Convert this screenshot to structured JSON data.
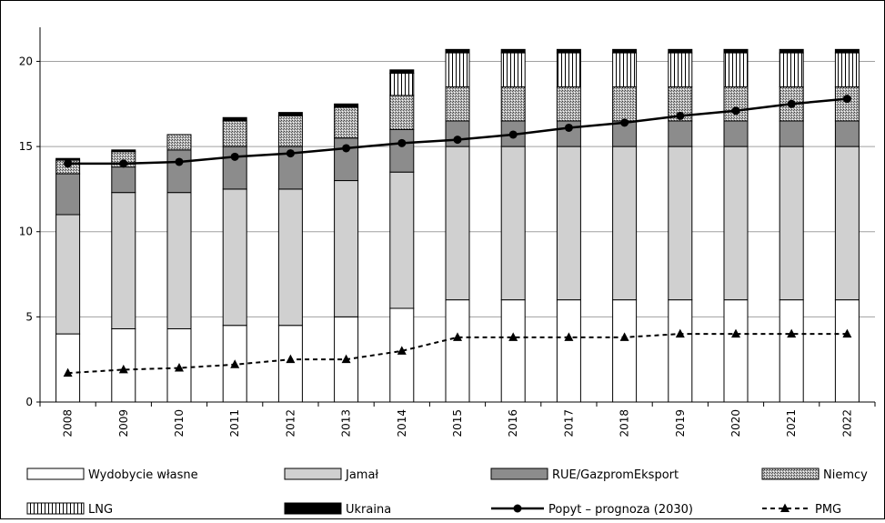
{
  "chart_data": {
    "type": "bar",
    "stacked": true,
    "title": "",
    "xlabel": "",
    "ylabel": "",
    "ylim": [
      0,
      22
    ],
    "yticks": [
      0,
      5,
      10,
      15,
      20
    ],
    "grid": true,
    "legend_position": "bottom",
    "categories": [
      "2008",
      "2009",
      "2010",
      "2011",
      "2012",
      "2013",
      "2014",
      "2015",
      "2016",
      "2017",
      "2018",
      "2019",
      "2020",
      "2021",
      "2022"
    ],
    "series": [
      {
        "name": "Wydobycie własne",
        "kind": "bar",
        "pattern": "white",
        "values": [
          4.0,
          4.3,
          4.3,
          4.5,
          4.5,
          5.0,
          5.5,
          6.0,
          6.0,
          6.0,
          6.0,
          6.0,
          6.0,
          6.0,
          6.0
        ]
      },
      {
        "name": "Jamał",
        "kind": "bar",
        "pattern": "lightgray",
        "values": [
          7.0,
          8.0,
          8.0,
          8.0,
          8.0,
          8.0,
          8.0,
          9.0,
          9.0,
          9.0,
          9.0,
          9.0,
          9.0,
          9.0,
          9.0
        ]
      },
      {
        "name": "RUE/GazpromEksport",
        "kind": "bar",
        "pattern": "darkgray",
        "values": [
          2.4,
          1.5,
          2.5,
          2.5,
          2.5,
          2.5,
          2.5,
          1.5,
          1.5,
          1.5,
          1.5,
          1.5,
          1.5,
          1.5,
          1.5
        ]
      },
      {
        "name": "Niemcy",
        "kind": "bar",
        "pattern": "crosshatch",
        "values": [
          0.8,
          0.9,
          0.9,
          1.5,
          1.8,
          1.8,
          2.0,
          2.0,
          2.0,
          2.0,
          2.0,
          2.0,
          2.0,
          2.0,
          2.0
        ]
      },
      {
        "name": "LNG",
        "kind": "bar",
        "pattern": "vertical",
        "values": [
          0,
          0,
          0,
          0,
          0,
          0,
          1.3,
          2.0,
          2.0,
          2.0,
          2.0,
          2.0,
          2.0,
          2.0,
          2.0
        ]
      },
      {
        "name": "Ukraina",
        "kind": "bar",
        "pattern": "black",
        "values": [
          0.1,
          0.1,
          0,
          0.2,
          0.2,
          0.2,
          0.2,
          0.2,
          0.2,
          0.2,
          0.2,
          0.2,
          0.2,
          0.2,
          0.2
        ]
      },
      {
        "name": "Popyt – prognoza (2030)",
        "kind": "line",
        "style": "solid-circle",
        "values": [
          14.0,
          14.0,
          14.1,
          14.4,
          14.6,
          14.9,
          15.2,
          15.4,
          15.7,
          16.1,
          16.4,
          16.8,
          17.1,
          17.5,
          17.8
        ]
      },
      {
        "name": "PMG",
        "kind": "line",
        "style": "dashed-triangle",
        "values": [
          1.7,
          1.9,
          2.0,
          2.2,
          2.5,
          2.5,
          3.0,
          3.8,
          3.8,
          3.8,
          3.8,
          4.0,
          4.0,
          4.0,
          4.0
        ]
      }
    ]
  }
}
